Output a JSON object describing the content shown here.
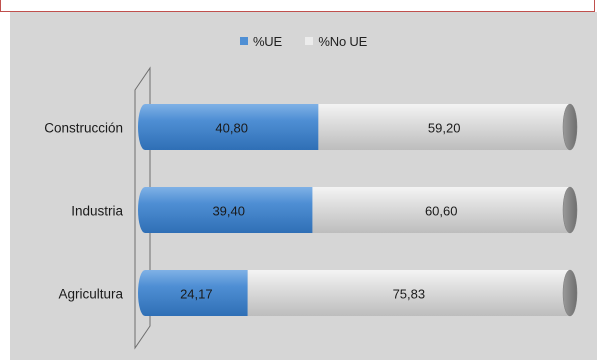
{
  "colors": {
    "ue": "#4f8fd4",
    "no_ue": "#d8d8d8",
    "panel": "#d6d6d6"
  },
  "chart_data": {
    "type": "bar",
    "orientation": "horizontal",
    "stacked": true,
    "percent": true,
    "categories": [
      "Construcción",
      "Industria",
      "Agricultura"
    ],
    "series": [
      {
        "name": "%UE",
        "values": [
          40.8,
          39.4,
          24.17
        ],
        "labels": [
          "40,80",
          "39,40",
          "24,17"
        ]
      },
      {
        "name": "%No UE",
        "values": [
          59.2,
          60.6,
          75.83
        ],
        "labels": [
          "59,20",
          "60,60",
          "75,83"
        ]
      }
    ],
    "xlim": [
      0,
      100
    ],
    "legend": "top-center",
    "grid": false
  }
}
